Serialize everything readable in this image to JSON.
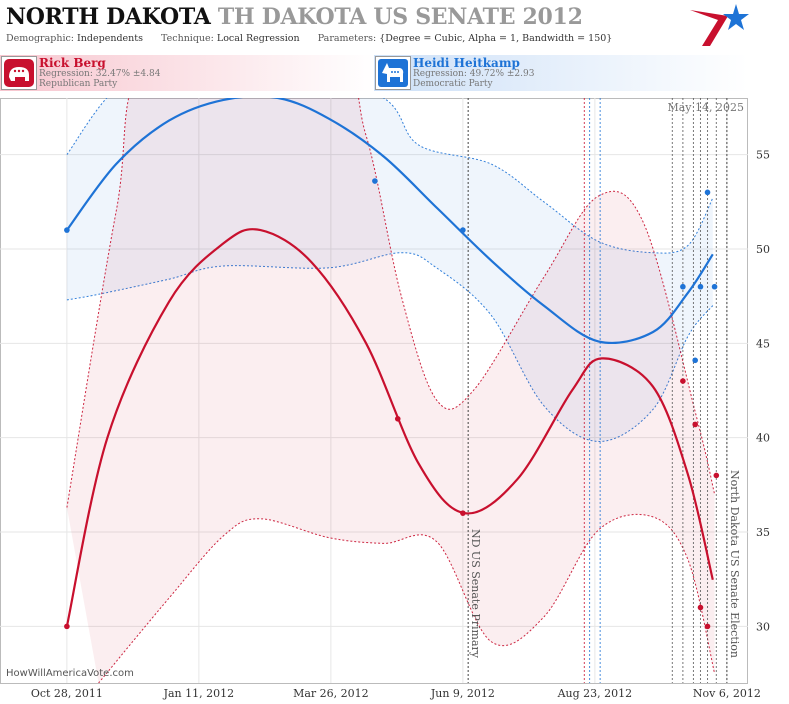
{
  "header": {
    "title_main": "NORTH DAKOTA",
    "title_sub": "TH DAKOTA US SENATE 2012",
    "demographic_label": "Demographic:",
    "demographic_value": "Independents",
    "technique_label": "Technique:",
    "technique_value": "Local Regression",
    "parameters_label": "Parameters:",
    "parameters_value": "{Degree = Cubic, Alpha = 1, Bandwidth = 150}"
  },
  "candidates": {
    "rep": {
      "name": "Rick Berg",
      "regression": "Regression: 32.47% ±4.84",
      "party": "Republican Party",
      "color": "#c8102e",
      "icon": "republican-elephant-icon"
    },
    "dem": {
      "name": "Heidi Heitkamp",
      "regression": "Regression: 49.72% ±2.93",
      "party": "Democratic Party",
      "color": "#1e73d6",
      "icon": "democratic-donkey-icon"
    }
  },
  "credit": "HowWillAmericaVote.com",
  "chart_data": {
    "type": "line",
    "date_label": "May 14, 2025",
    "xlim": [
      "2011-09-20",
      "2012-11-18"
    ],
    "ylim": [
      27,
      58
    ],
    "yticks": [
      30,
      35,
      40,
      45,
      50,
      55
    ],
    "xticks": [
      {
        "date": "2011-10-28",
        "label": "Oct 28, 2011"
      },
      {
        "date": "2012-01-11",
        "label": "Jan 11, 2012"
      },
      {
        "date": "2012-03-26",
        "label": "Mar 26, 2012"
      },
      {
        "date": "2012-06-09",
        "label": "Jun 9, 2012"
      },
      {
        "date": "2012-08-23",
        "label": "Aug 23, 2012"
      },
      {
        "date": "2012-11-06",
        "label": "Nov 6, 2012"
      }
    ],
    "grid": true,
    "events": [
      {
        "date": "2012-06-12",
        "label": "ND US Senate Primary"
      },
      {
        "date": "2012-11-06",
        "label": "North Dakota US Senate Election"
      }
    ],
    "poll_dates": [
      "2012-08-17",
      "2012-08-20",
      "2012-08-26",
      "2012-10-06",
      "2012-10-12",
      "2012-10-18",
      "2012-10-22",
      "2012-10-26",
      "2012-10-31"
    ],
    "series": [
      {
        "name": "Heidi Heitkamp",
        "party": "dem",
        "color": "#1e73d6",
        "points": [
          [
            "2011-10-28",
            51
          ],
          [
            "2012-04-20",
            53.6
          ],
          [
            "2012-06-09",
            51
          ],
          [
            "2012-10-12",
            48
          ],
          [
            "2012-10-19",
            44.1
          ],
          [
            "2012-10-22",
            48
          ],
          [
            "2012-10-26",
            53
          ],
          [
            "2012-10-30",
            48
          ]
        ],
        "fit": [
          [
            "2011-10-28",
            51
          ],
          [
            "2011-11-25",
            54.5
          ],
          [
            "2011-12-25",
            56.8
          ],
          [
            "2012-01-25",
            57.9
          ],
          [
            "2012-02-25",
            58.0
          ],
          [
            "2012-03-25",
            56.9
          ],
          [
            "2012-04-25",
            54.9
          ],
          [
            "2012-05-25",
            52.2
          ],
          [
            "2012-06-25",
            49.4
          ],
          [
            "2012-07-25",
            47.0
          ],
          [
            "2012-08-25",
            45.1
          ],
          [
            "2012-09-25",
            45.6
          ],
          [
            "2012-10-15",
            47.7
          ],
          [
            "2012-10-29",
            49.72
          ]
        ],
        "band_upper": [
          [
            "2011-10-28",
            55
          ],
          [
            "2011-11-25",
            58.5
          ],
          [
            "2012-01-01",
            60
          ],
          [
            "2012-03-01",
            60
          ],
          [
            "2012-04-25",
            58.0
          ],
          [
            "2012-05-15",
            55.5
          ],
          [
            "2012-06-25",
            54.5
          ],
          [
            "2012-07-25",
            52.5
          ],
          [
            "2012-08-25",
            50.4
          ],
          [
            "2012-09-25",
            49.8
          ],
          [
            "2012-10-15",
            50.2
          ],
          [
            "2012-10-29",
            52.7
          ]
        ],
        "band_lower": [
          [
            "2011-10-28",
            47.3
          ],
          [
            "2011-11-15",
            47.6
          ],
          [
            "2011-12-25",
            48.4
          ],
          [
            "2012-01-25",
            49.1
          ],
          [
            "2012-03-25",
            49.0
          ],
          [
            "2012-05-05",
            49.8
          ],
          [
            "2012-05-25",
            49.0
          ],
          [
            "2012-06-25",
            46.5
          ],
          [
            "2012-07-25",
            41.7
          ],
          [
            "2012-08-25",
            39.8
          ],
          [
            "2012-09-25",
            41.5
          ],
          [
            "2012-10-15",
            45.4
          ],
          [
            "2012-10-29",
            47.0
          ]
        ]
      },
      {
        "name": "Rick Berg",
        "party": "rep",
        "color": "#c8102e",
        "points": [
          [
            "2011-10-28",
            30
          ],
          [
            "2012-05-03",
            41
          ],
          [
            "2012-06-09",
            36
          ],
          [
            "2012-10-12",
            43
          ],
          [
            "2012-10-19",
            40.7
          ],
          [
            "2012-10-22",
            31
          ],
          [
            "2012-10-26",
            30
          ],
          [
            "2012-10-31",
            38
          ]
        ],
        "fit": [
          [
            "2011-10-28",
            30
          ],
          [
            "2011-11-20",
            40
          ],
          [
            "2011-12-25",
            47.2
          ],
          [
            "2012-01-25",
            50.3
          ],
          [
            "2012-02-15",
            51.0
          ],
          [
            "2012-03-15",
            49.3
          ],
          [
            "2012-04-15",
            45.0
          ],
          [
            "2012-05-15",
            38.6
          ],
          [
            "2012-06-10",
            36.0
          ],
          [
            "2012-07-10",
            37.8
          ],
          [
            "2012-08-10",
            42.5
          ],
          [
            "2012-08-27",
            44.2
          ],
          [
            "2012-09-25",
            42.7
          ],
          [
            "2012-10-15",
            38.0
          ],
          [
            "2012-10-29",
            32.47
          ]
        ],
        "band_upper": [
          [
            "2011-10-28",
            36.3
          ],
          [
            "2011-11-25",
            52
          ],
          [
            "2011-12-15",
            60
          ],
          [
            "2012-03-25",
            60
          ],
          [
            "2012-04-15",
            56
          ],
          [
            "2012-05-05",
            47.5
          ],
          [
            "2012-05-25",
            42.0
          ],
          [
            "2012-06-15",
            42.5
          ],
          [
            "2012-07-25",
            48.5
          ],
          [
            "2012-08-25",
            52.8
          ],
          [
            "2012-09-20",
            51.3
          ],
          [
            "2012-10-20",
            41.0
          ],
          [
            "2012-10-30",
            37.0
          ]
        ],
        "band_lower": [
          [
            "2011-11-15",
            27
          ],
          [
            "2011-12-25",
            31.5
          ],
          [
            "2012-01-25",
            34.8
          ],
          [
            "2012-02-15",
            35.7
          ],
          [
            "2012-03-25",
            34.7
          ],
          [
            "2012-04-25",
            34.4
          ],
          [
            "2012-05-25",
            34.5
          ],
          [
            "2012-06-25",
            29.2
          ],
          [
            "2012-07-25",
            30.5
          ],
          [
            "2012-08-25",
            35.1
          ],
          [
            "2012-09-25",
            35.8
          ],
          [
            "2012-10-15",
            33.5
          ],
          [
            "2012-10-30",
            27.5
          ]
        ]
      }
    ]
  }
}
